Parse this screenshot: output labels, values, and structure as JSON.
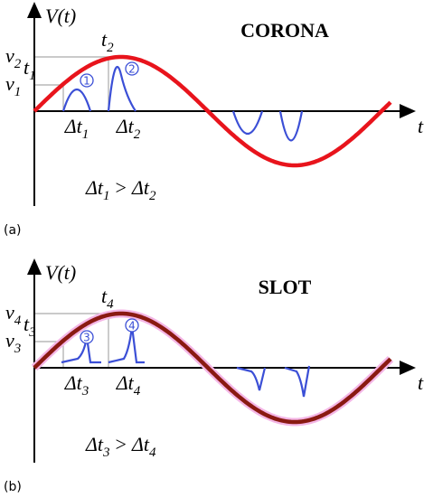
{
  "panels": [
    {
      "label": "(a)",
      "title": "CORONA",
      "y_axis": "V(t)",
      "x_axis": "t",
      "levels": [
        {
          "base": "v",
          "sub": "2"
        },
        {
          "base": "v",
          "sub": "1"
        }
      ],
      "times": [
        {
          "base": "t",
          "sub": "1"
        },
        {
          "base": "t",
          "sub": "2"
        }
      ],
      "pulse_ids": [
        "1",
        "2"
      ],
      "deltas": [
        {
          "base": "Δt",
          "sub": "1"
        },
        {
          "base": "Δt",
          "sub": "2"
        }
      ],
      "relation": {
        "left": {
          "base": "Δt",
          "sub": "1"
        },
        "op": ">",
        "right": {
          "base": "Δt",
          "sub": "2"
        }
      }
    },
    {
      "label": "(b)",
      "title": "SLOT",
      "y_axis": "V(t)",
      "x_axis": "t",
      "levels": [
        {
          "base": "v",
          "sub": "4"
        },
        {
          "base": "v",
          "sub": "3"
        }
      ],
      "times": [
        {
          "base": "t",
          "sub": "3"
        },
        {
          "base": "t",
          "sub": "4"
        }
      ],
      "pulse_ids": [
        "3",
        "4"
      ],
      "deltas": [
        {
          "base": "Δt",
          "sub": "3"
        },
        {
          "base": "Δt",
          "sub": "4"
        }
      ],
      "relation": {
        "left": {
          "base": "Δt",
          "sub": "3"
        },
        "op": ">",
        "right": {
          "base": "Δt",
          "sub": "4"
        }
      }
    }
  ]
}
